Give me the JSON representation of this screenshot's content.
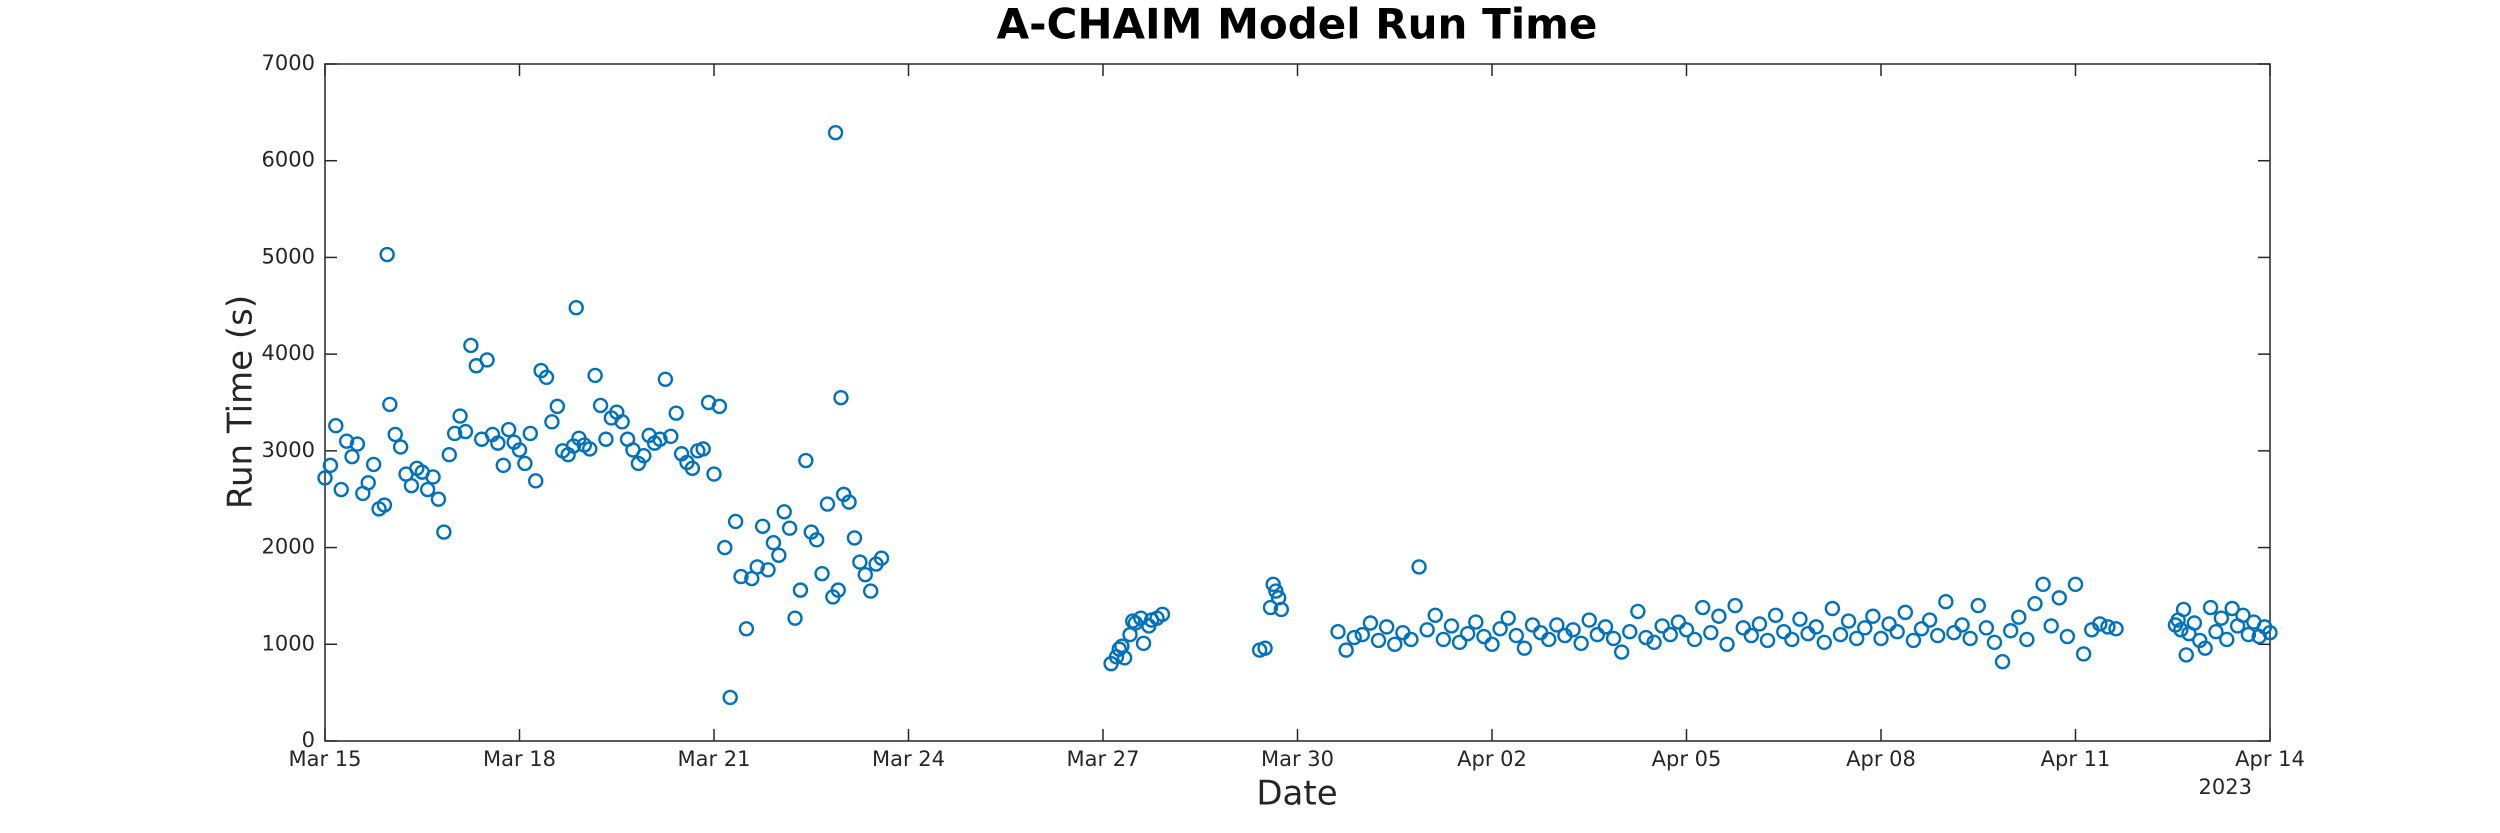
{
  "chart_data": {
    "type": "scatter",
    "title": "A-CHAIM Model Run Time",
    "x_label": "Date",
    "y_label": "Run Time (s)",
    "x_secondary_label": "2023",
    "color": "#0072bd",
    "xlim": [
      "2023-03-15",
      "2023-04-14"
    ],
    "xticks": [
      {
        "value": "2023-03-15",
        "label": "Mar 15"
      },
      {
        "value": "2023-03-18",
        "label": "Mar 18"
      },
      {
        "value": "2023-03-21",
        "label": "Mar 21"
      },
      {
        "value": "2023-03-24",
        "label": "Mar 24"
      },
      {
        "value": "2023-03-27",
        "label": "Mar 27"
      },
      {
        "value": "2023-03-30",
        "label": "Mar 30"
      },
      {
        "value": "2023-04-02",
        "label": "Apr 02"
      },
      {
        "value": "2023-04-05",
        "label": "Apr 05"
      },
      {
        "value": "2023-04-08",
        "label": "Apr 08"
      },
      {
        "value": "2023-04-11",
        "label": "Apr 11"
      },
      {
        "value": "2023-04-14",
        "label": "Apr 14"
      }
    ],
    "ylim": [
      0,
      7000
    ],
    "yticks": [
      0,
      1000,
      2000,
      3000,
      4000,
      5000,
      6000,
      7000
    ],
    "x": [
      "2023-03-15 00:00",
      "2023-03-15 02:00",
      "2023-03-15 04:00",
      "2023-03-15 06:00",
      "2023-03-15 08:00",
      "2023-03-15 10:00",
      "2023-03-15 12:00",
      "2023-03-15 14:00",
      "2023-03-15 16:00",
      "2023-03-15 18:00",
      "2023-03-15 20:00",
      "2023-03-15 22:00",
      "2023-03-15 23:00",
      "2023-03-16 00:00",
      "2023-03-16 02:00",
      "2023-03-16 04:00",
      "2023-03-16 06:00",
      "2023-03-16 08:00",
      "2023-03-16 10:00",
      "2023-03-16 12:00",
      "2023-03-16 14:00",
      "2023-03-16 16:00",
      "2023-03-16 18:00",
      "2023-03-16 20:00",
      "2023-03-16 22:00",
      "2023-03-17 00:00",
      "2023-03-17 02:00",
      "2023-03-17 04:00",
      "2023-03-17 06:00",
      "2023-03-17 08:00",
      "2023-03-17 10:00",
      "2023-03-17 12:00",
      "2023-03-17 14:00",
      "2023-03-17 16:00",
      "2023-03-17 18:00",
      "2023-03-17 20:00",
      "2023-03-17 22:00",
      "2023-03-18 00:00",
      "2023-03-18 02:00",
      "2023-03-18 04:00",
      "2023-03-18 06:00",
      "2023-03-18 08:00",
      "2023-03-18 10:00",
      "2023-03-18 12:00",
      "2023-03-18 14:00",
      "2023-03-18 16:00",
      "2023-03-18 18:00",
      "2023-03-18 20:00",
      "2023-03-18 21:00",
      "2023-03-18 22:00",
      "2023-03-19 00:00",
      "2023-03-19 02:00",
      "2023-03-19 04:00",
      "2023-03-19 06:00",
      "2023-03-19 08:00",
      "2023-03-19 10:00",
      "2023-03-19 12:00",
      "2023-03-19 14:00",
      "2023-03-19 16:00",
      "2023-03-19 18:00",
      "2023-03-19 20:00",
      "2023-03-19 22:00",
      "2023-03-20 00:00",
      "2023-03-20 02:00",
      "2023-03-20 04:00",
      "2023-03-20 06:00",
      "2023-03-20 08:00",
      "2023-03-20 10:00",
      "2023-03-20 12:00",
      "2023-03-20 14:00",
      "2023-03-20 16:00",
      "2023-03-20 18:00",
      "2023-03-20 20:00",
      "2023-03-20 22:00",
      "2023-03-21 00:00",
      "2023-03-21 02:00",
      "2023-03-21 04:00",
      "2023-03-21 06:00",
      "2023-03-21 08:00",
      "2023-03-21 10:00",
      "2023-03-21 12:00",
      "2023-03-21 14:00",
      "2023-03-21 16:00",
      "2023-03-21 18:00",
      "2023-03-21 20:00",
      "2023-03-21 22:00",
      "2023-03-22 00:00",
      "2023-03-22 02:00",
      "2023-03-22 04:00",
      "2023-03-22 06:00",
      "2023-03-22 08:00",
      "2023-03-22 10:00",
      "2023-03-22 12:00",
      "2023-03-22 14:00",
      "2023-03-22 16:00",
      "2023-03-22 18:00",
      "2023-03-22 20:00",
      "2023-03-22 21:00",
      "2023-03-22 22:00",
      "2023-03-22 23:00",
      "2023-03-23 00:00",
      "2023-03-23 02:00",
      "2023-03-23 04:00",
      "2023-03-23 06:00",
      "2023-03-23 08:00",
      "2023-03-23 10:00",
      "2023-03-23 12:00",
      "2023-03-23 14:00",
      "2023-03-27 03:00",
      "2023-03-27 05:00",
      "2023-03-27 06:00",
      "2023-03-27 07:00",
      "2023-03-27 08:00",
      "2023-03-27 10:00",
      "2023-03-27 11:00",
      "2023-03-27 12:00",
      "2023-03-27 14:00",
      "2023-03-27 15:00",
      "2023-03-27 17:00",
      "2023-03-27 18:00",
      "2023-03-27 20:00",
      "2023-03-27 22:00",
      "2023-03-29 10:00",
      "2023-03-29 12:00",
      "2023-03-29 14:00",
      "2023-03-29 15:00",
      "2023-03-29 16:00",
      "2023-03-29 17:00",
      "2023-03-29 18:00",
      "2023-03-30 15:00",
      "2023-03-30 18:00",
      "2023-03-30 21:00",
      "2023-03-31 00:00",
      "2023-03-31 03:00",
      "2023-03-31 06:00",
      "2023-03-31 09:00",
      "2023-03-31 12:00",
      "2023-03-31 15:00",
      "2023-03-31 18:00",
      "2023-03-31 21:00",
      "2023-04-01 00:00",
      "2023-04-01 03:00",
      "2023-04-01 06:00",
      "2023-04-01 09:00",
      "2023-04-01 12:00",
      "2023-04-01 15:00",
      "2023-04-01 18:00",
      "2023-04-01 21:00",
      "2023-04-02 00:00",
      "2023-04-02 03:00",
      "2023-04-02 06:00",
      "2023-04-02 09:00",
      "2023-04-02 12:00",
      "2023-04-02 15:00",
      "2023-04-02 18:00",
      "2023-04-02 21:00",
      "2023-04-03 00:00",
      "2023-04-03 03:00",
      "2023-04-03 06:00",
      "2023-04-03 09:00",
      "2023-04-03 12:00",
      "2023-04-03 15:00",
      "2023-04-03 18:00",
      "2023-04-03 21:00",
      "2023-04-04 00:00",
      "2023-04-04 03:00",
      "2023-04-04 06:00",
      "2023-04-04 09:00",
      "2023-04-04 12:00",
      "2023-04-04 15:00",
      "2023-04-04 18:00",
      "2023-04-04 21:00",
      "2023-04-05 00:00",
      "2023-04-05 03:00",
      "2023-04-05 06:00",
      "2023-04-05 09:00",
      "2023-04-05 12:00",
      "2023-04-05 15:00",
      "2023-04-05 18:00",
      "2023-04-05 21:00",
      "2023-04-06 00:00",
      "2023-04-06 03:00",
      "2023-04-06 06:00",
      "2023-04-06 09:00",
      "2023-04-06 12:00",
      "2023-04-06 15:00",
      "2023-04-06 18:00",
      "2023-04-06 21:00",
      "2023-04-07 00:00",
      "2023-04-07 03:00",
      "2023-04-07 06:00",
      "2023-04-07 09:00",
      "2023-04-07 12:00",
      "2023-04-07 15:00",
      "2023-04-07 18:00",
      "2023-04-07 21:00",
      "2023-04-08 00:00",
      "2023-04-08 03:00",
      "2023-04-08 06:00",
      "2023-04-08 09:00",
      "2023-04-08 12:00",
      "2023-04-08 15:00",
      "2023-04-08 18:00",
      "2023-04-08 21:00",
      "2023-04-09 00:00",
      "2023-04-09 03:00",
      "2023-04-09 06:00",
      "2023-04-09 09:00",
      "2023-04-09 12:00",
      "2023-04-09 15:00",
      "2023-04-09 18:00",
      "2023-04-09 21:00",
      "2023-04-10 00:00",
      "2023-04-10 03:00",
      "2023-04-10 06:00",
      "2023-04-10 09:00",
      "2023-04-10 12:00",
      "2023-04-10 15:00",
      "2023-04-10 18:00",
      "2023-04-10 21:00",
      "2023-04-11 00:00",
      "2023-04-11 03:00",
      "2023-04-11 06:00",
      "2023-04-11 09:00",
      "2023-04-11 12:00",
      "2023-04-11 15:00",
      "2023-04-12 13:00",
      "2023-04-12 14:00",
      "2023-04-12 15:00",
      "2023-04-12 16:00",
      "2023-04-12 17:00",
      "2023-04-12 18:00",
      "2023-04-12 20:00",
      "2023-04-12 22:00",
      "2023-04-13 00:00",
      "2023-04-13 02:00",
      "2023-04-13 04:00",
      "2023-04-13 06:00",
      "2023-04-13 08:00",
      "2023-04-13 10:00",
      "2023-04-13 12:00",
      "2023-04-13 14:00",
      "2023-04-13 16:00",
      "2023-04-13 18:00",
      "2023-04-13 20:00",
      "2023-04-13 22:00",
      "2023-04-14 00:00"
    ],
    "values": [
      2720,
      2850,
      3260,
      2600,
      3100,
      2940,
      3070,
      2560,
      2670,
      2860,
      2400,
      2440,
      5030,
      3480,
      3170,
      3040,
      2760,
      2640,
      2820,
      2780,
      2600,
      2730,
      2500,
      2160,
      2960,
      3180,
      3360,
      3200,
      4090,
      3880,
      3120,
      3940,
      3170,
      3080,
      2850,
      3220,
      3090,
      3010,
      2870,
      3180,
      2690,
      3830,
      3760,
      3300,
      3460,
      3000,
      2960,
      3050,
      4480,
      3130,
      3060,
      3020,
      3780,
      3470,
      3120,
      3340,
      3400,
      3300,
      3120,
      3010,
      2870,
      2950,
      3160,
      3080,
      3120,
      3740,
      3150,
      3390,
      2970,
      2880,
      2820,
      3000,
      3020,
      3500,
      2760,
      3460,
      2000,
      450,
      2270,
      1700,
      1160,
      1680,
      1800,
      2220,
      1770,
      2050,
      1920,
      2370,
      2200,
      1270,
      1560,
      2900,
      2160,
      2080,
      1730,
      2450,
      1490,
      6290,
      1560,
      3550,
      2550,
      2470,
      2100,
      1850,
      1720,
      1550,
      1830,
      1890,
      800,
      870,
      950,
      980,
      860,
      1100,
      1240,
      1220,
      1270,
      1010,
      1190,
      1250,
      1270,
      1310,
      940,
      960,
      1380,
      1620,
      1550,
      1480,
      1360,
      1130,
      940,
      1070,
      1100,
      1220,
      1040,
      1180,
      1000,
      1120,
      1050,
      1800,
      1150,
      1300,
      1050,
      1190,
      1020,
      1110,
      1230,
      1080,
      1000,
      1160,
      1270,
      1090,
      960,
      1200,
      1120,
      1050,
      1200,
      1090,
      1150,
      1010,
      1250,
      1100,
      1180,
      1060,
      920,
      1130,
      1340,
      1070,
      1020,
      1190,
      1100,
      1230,
      1150,
      1050,
      1380,
      1120,
      1290,
      1000,
      1400,
      1170,
      1090,
      1210,
      1040,
      1300,
      1130,
      1050,
      1260,
      1110,
      1180,
      1020,
      1370,
      1100,
      1240,
      1060,
      1170,
      1290,
      1060,
      1210,
      1130,
      1330,
      1040,
      1160,
      1250,
      1090,
      1440,
      1120,
      1200,
      1060,
      1400,
      1170,
      1020,
      820,
      1140,
      1280,
      1050,
      1420,
      1620,
      1190,
      1480,
      1080,
      1620,
      900,
      1150,
      1210,
      1180,
      1160,
      1200,
      1250,
      1150,
      1360,
      890,
      1110,
      1220,
      1040,
      960,
      1380,
      1130,
      1270,
      1050,
      1370,
      1190,
      1300,
      1100,
      1230,
      1080,
      1180,
      1120
    ]
  }
}
